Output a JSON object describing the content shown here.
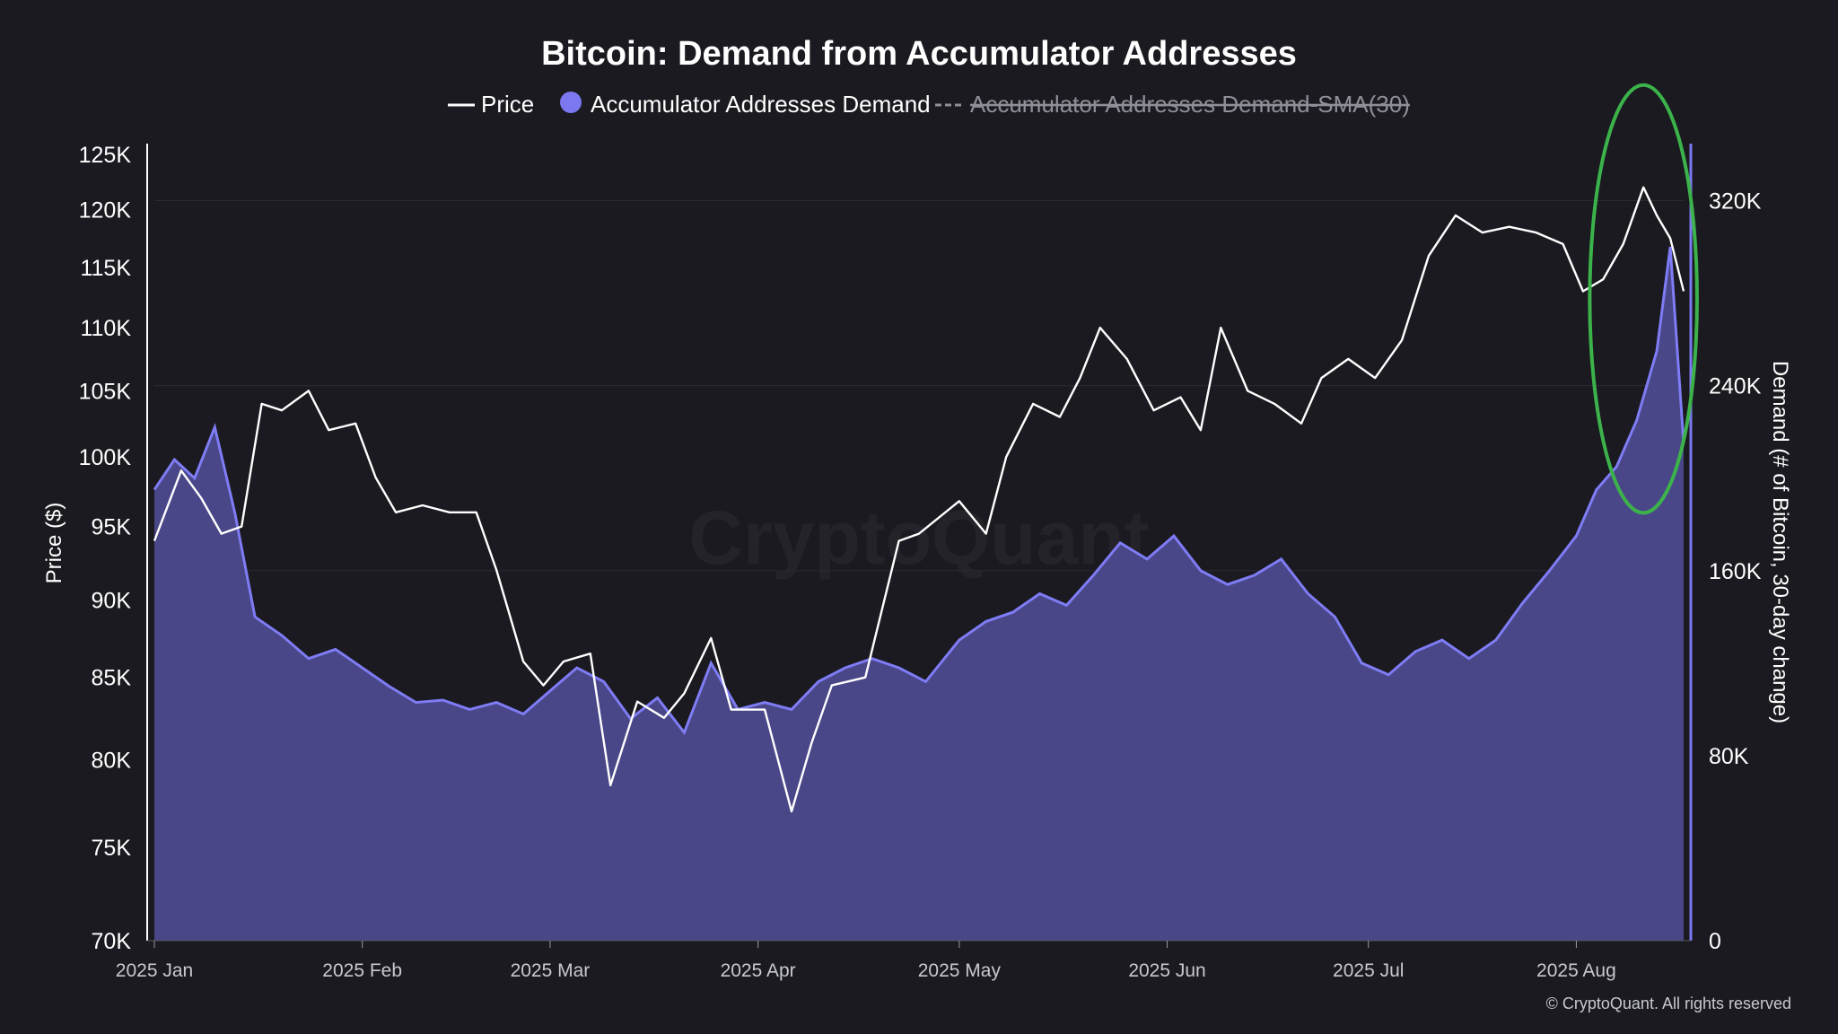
{
  "chart_data": {
    "type": "line",
    "title": "Bitcoin: Demand from Accumulator Addresses",
    "legend": {
      "placement": "top-center",
      "entries": [
        {
          "label": "Price",
          "symbol": "line",
          "color": "#ffffff"
        },
        {
          "label": "Accumulator Addresses Demand",
          "symbol": "circle",
          "color": "#7b78f0"
        },
        {
          "label": "Accumulator Addresses Demand-SMA(30)",
          "symbol": "dashed-line",
          "color": "#8f8f99",
          "hidden": true
        }
      ]
    },
    "x_axis": {
      "ticks": [
        "2025 Jan",
        "2025 Feb",
        "2025 Mar",
        "2025 Apr",
        "2025 May",
        "2025 Jun",
        "2025 Jul",
        "2025 Aug"
      ],
      "range": [
        "2025-01-01",
        "2025-08-17"
      ]
    },
    "y_left": {
      "label": "Price ($)",
      "scale": "log",
      "range": [
        70000,
        125000
      ],
      "ticks": [
        70000,
        75000,
        80000,
        85000,
        90000,
        95000,
        100000,
        105000,
        110000,
        115000,
        120000,
        125000
      ],
      "tick_labels": [
        "70K",
        "75K",
        "80K",
        "85K",
        "90K",
        "95K",
        "100K",
        "105K",
        "110K",
        "115K",
        "120K",
        "125K"
      ]
    },
    "y_right": {
      "label": "Demand (# of Bitcoin, 30-day change)",
      "scale": "linear",
      "range": [
        0,
        340000
      ],
      "ticks": [
        0,
        80000,
        160000,
        240000,
        320000
      ],
      "tick_labels": [
        "0",
        "80K",
        "160K",
        "240K",
        "320K"
      ]
    },
    "grid": true,
    "series": [
      {
        "name": "Price",
        "axis": "left",
        "color": "#ffffff",
        "x": [
          "2025-01-01",
          "2025-01-05",
          "2025-01-08",
          "2025-01-11",
          "2025-01-14",
          "2025-01-17",
          "2025-01-20",
          "2025-01-24",
          "2025-01-27",
          "2025-01-31",
          "2025-02-03",
          "2025-02-06",
          "2025-02-10",
          "2025-02-14",
          "2025-02-18",
          "2025-02-21",
          "2025-02-25",
          "2025-02-28",
          "2025-03-03",
          "2025-03-07",
          "2025-03-10",
          "2025-03-14",
          "2025-03-18",
          "2025-03-21",
          "2025-03-25",
          "2025-03-28",
          "2025-04-02",
          "2025-04-06",
          "2025-04-09",
          "2025-04-12",
          "2025-04-17",
          "2025-04-22",
          "2025-04-25",
          "2025-05-01",
          "2025-05-05",
          "2025-05-08",
          "2025-05-12",
          "2025-05-16",
          "2025-05-19",
          "2025-05-22",
          "2025-05-26",
          "2025-05-30",
          "2025-06-03",
          "2025-06-06",
          "2025-06-09",
          "2025-06-13",
          "2025-06-17",
          "2025-06-21",
          "2025-06-24",
          "2025-06-28",
          "2025-07-02",
          "2025-07-06",
          "2025-07-10",
          "2025-07-14",
          "2025-07-18",
          "2025-07-22",
          "2025-07-26",
          "2025-07-30",
          "2025-08-02",
          "2025-08-05",
          "2025-08-08",
          "2025-08-11",
          "2025-08-13",
          "2025-08-15",
          "2025-08-17"
        ],
        "values": [
          94000,
          99000,
          97000,
          94500,
          95000,
          104000,
          103500,
          105000,
          102000,
          102500,
          98500,
          96000,
          96500,
          96000,
          96000,
          92000,
          86000,
          84500,
          86000,
          86500,
          78500,
          83500,
          82500,
          84000,
          87500,
          83000,
          83000,
          77000,
          81000,
          84500,
          85000,
          94000,
          94500,
          96800,
          94500,
          100000,
          104000,
          103000,
          106000,
          110000,
          107500,
          103500,
          104500,
          102000,
          110000,
          105000,
          104000,
          102500,
          106000,
          107500,
          106000,
          109000,
          116000,
          119500,
          118000,
          118500,
          118000,
          117000,
          113000,
          114000,
          117000,
          122000,
          119500,
          117500,
          113000
        ]
      },
      {
        "name": "Accumulator Addresses Demand",
        "axis": "right",
        "color": "#7b78f0",
        "x": [
          "2025-01-01",
          "2025-01-04",
          "2025-01-07",
          "2025-01-10",
          "2025-01-13",
          "2025-01-16",
          "2025-01-20",
          "2025-01-24",
          "2025-01-28",
          "2025-02-01",
          "2025-02-05",
          "2025-02-09",
          "2025-02-13",
          "2025-02-17",
          "2025-02-21",
          "2025-02-25",
          "2025-03-01",
          "2025-03-05",
          "2025-03-09",
          "2025-03-13",
          "2025-03-17",
          "2025-03-21",
          "2025-03-25",
          "2025-03-29",
          "2025-04-02",
          "2025-04-06",
          "2025-04-10",
          "2025-04-14",
          "2025-04-18",
          "2025-04-22",
          "2025-04-26",
          "2025-05-01",
          "2025-05-05",
          "2025-05-09",
          "2025-05-13",
          "2025-05-17",
          "2025-05-21",
          "2025-05-25",
          "2025-05-29",
          "2025-06-02",
          "2025-06-06",
          "2025-06-10",
          "2025-06-14",
          "2025-06-18",
          "2025-06-22",
          "2025-06-26",
          "2025-06-30",
          "2025-07-04",
          "2025-07-08",
          "2025-07-12",
          "2025-07-16",
          "2025-07-20",
          "2025-07-24",
          "2025-07-28",
          "2025-08-01",
          "2025-08-04",
          "2025-08-07",
          "2025-08-10",
          "2025-08-13",
          "2025-08-15",
          "2025-08-17"
        ],
        "values": [
          195000,
          208000,
          200000,
          222000,
          185000,
          140000,
          132000,
          122000,
          126000,
          118000,
          110000,
          103000,
          104000,
          100000,
          103000,
          98000,
          108000,
          118000,
          112000,
          96000,
          105000,
          90000,
          120000,
          100000,
          103000,
          100000,
          112000,
          118000,
          122000,
          118000,
          112000,
          130000,
          138000,
          142000,
          150000,
          145000,
          158000,
          172000,
          165000,
          175000,
          160000,
          154000,
          158000,
          165000,
          150000,
          140000,
          120000,
          115000,
          125000,
          130000,
          122000,
          130000,
          146000,
          160000,
          175000,
          195000,
          205000,
          225000,
          255000,
          300000,
          215000
        ]
      }
    ]
  },
  "watermark": "CryptoQuant",
  "copyright": "© CryptoQuant. All rights reserved",
  "annotation": {
    "shape": "ellipse",
    "color": "#3cb34a",
    "x_range": [
      "2025-08-03",
      "2025-08-19"
    ],
    "y_right_range": [
      185000,
      370000
    ]
  }
}
